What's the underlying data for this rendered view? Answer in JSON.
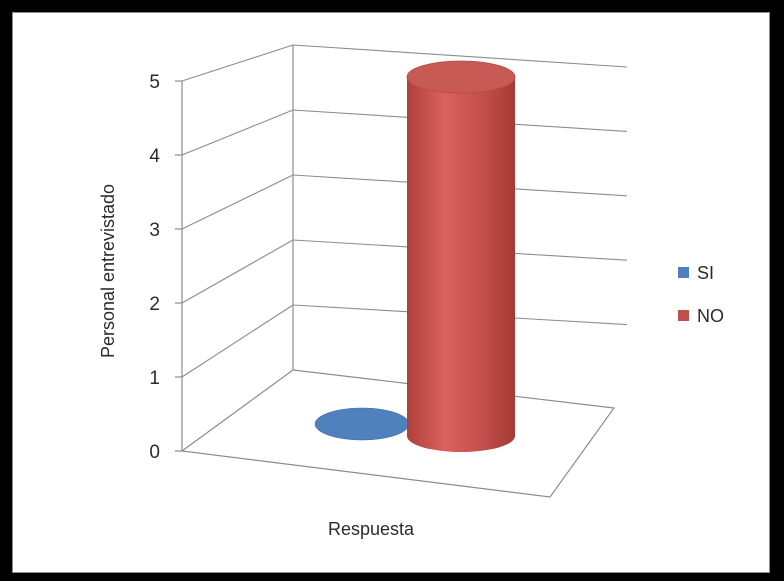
{
  "chart_data": {
    "type": "bar",
    "variant": "3d-cylinder",
    "categories": [
      ""
    ],
    "series": [
      {
        "name": "SI",
        "values": [
          0
        ],
        "color": "#4f81bd"
      },
      {
        "name": "NO",
        "values": [
          5
        ],
        "color": "#c0504d"
      }
    ],
    "xlabel": "Respuesta",
    "ylabel": "Personal entrevistado",
    "ylim": [
      0,
      5
    ],
    "yticks": [
      "0",
      "1",
      "2",
      "3",
      "4",
      "5"
    ],
    "grid": true,
    "legend_position": "right"
  }
}
